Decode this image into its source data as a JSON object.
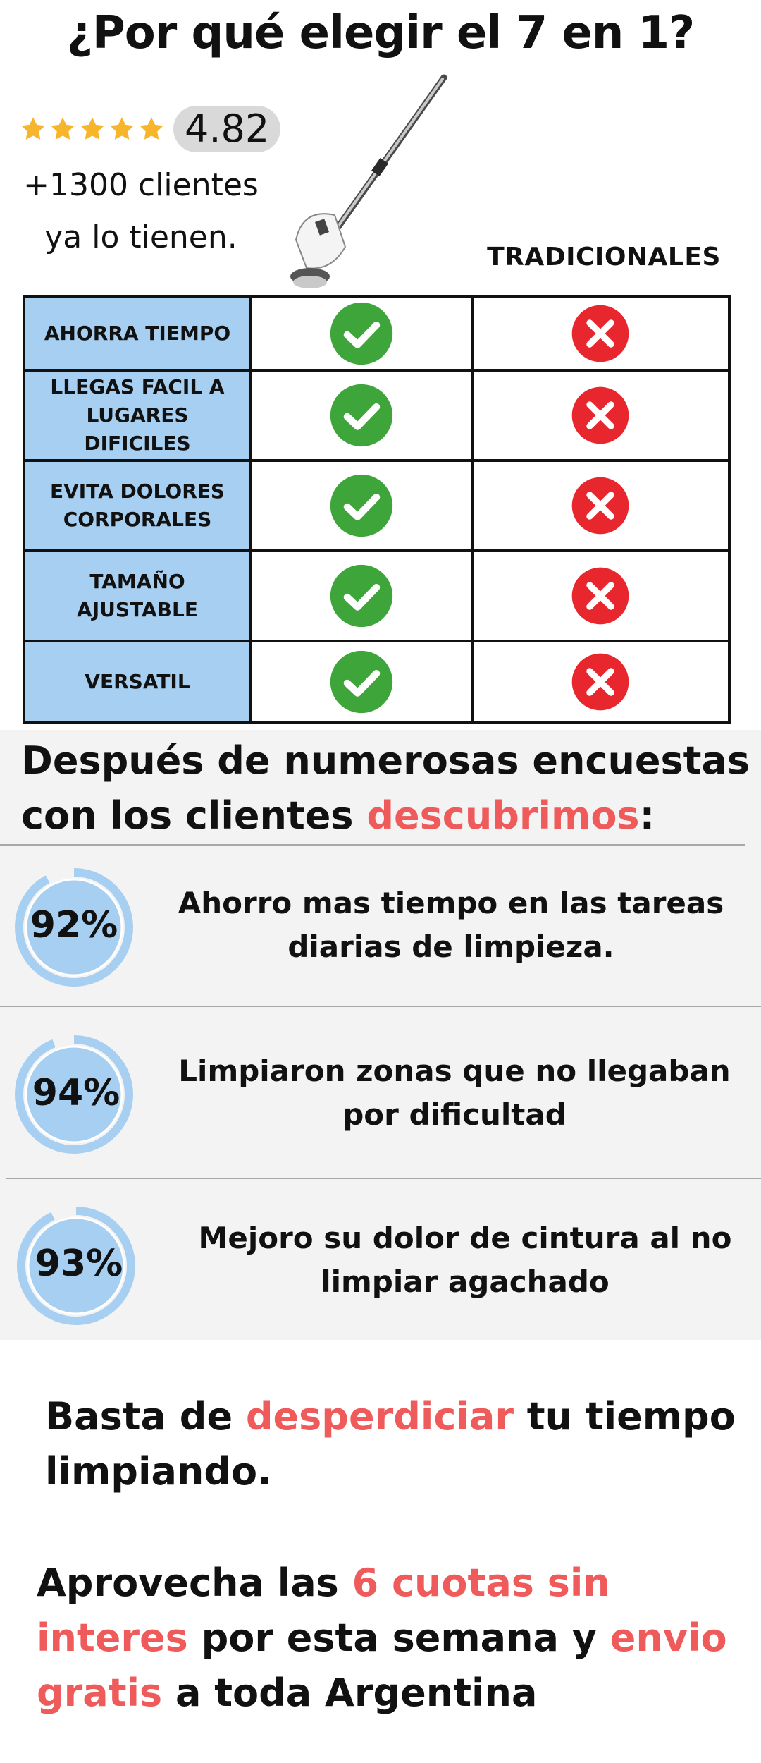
{
  "title": "¿Por qué elegir el 7 en 1?",
  "rating": {
    "stars": 5,
    "score": "4.82",
    "clients_line1": "+1300 clientes",
    "clients_line2": "ya lo tienen."
  },
  "product_image": "electric-spin-scrubber",
  "table": {
    "column_header_traditional": "TRADICIONALES",
    "rows": [
      {
        "label": "AHORRA TIEMPO",
        "product": "check",
        "traditional": "cross"
      },
      {
        "label": "LLEGAS FACIL A LUGARES DIFICILES",
        "product": "check",
        "traditional": "cross"
      },
      {
        "label": "EVITA DOLORES CORPORALES",
        "product": "check",
        "traditional": "cross"
      },
      {
        "label": "TAMAÑO AJUSTABLE",
        "product": "check",
        "traditional": "cross"
      },
      {
        "label": "VERSATIL",
        "product": "check",
        "traditional": "cross"
      }
    ]
  },
  "survey": {
    "heading_part1": "Después de numerosas encuestas con los clientes ",
    "heading_highlight": "descubrimos",
    "heading_part2": ":",
    "stats": [
      {
        "percent": "92%",
        "value": 92,
        "text": "Ahorro mas tiempo en las tareas diarias de limpieza."
      },
      {
        "percent": "94%",
        "value": 94,
        "text": "Limpiaron zonas que no llegaban por dificultad"
      },
      {
        "percent": "93%",
        "value": 93,
        "text": "Mejoro su dolor de cintura al no limpiar agachado"
      }
    ]
  },
  "cta1": {
    "part1": "Basta de ",
    "highlight": "desperdiciar",
    "part2": " tu tiempo limpiando."
  },
  "cta2": {
    "part1": "Aprovecha las ",
    "highlight1": "6 cuotas sin interes",
    "part2": " por esta semana y ",
    "highlight2": "envio gratis",
    "part3": " a toda Argentina"
  },
  "colors": {
    "accent_red": "#ef5b5b",
    "label_blue": "#a7cff1",
    "check_green": "#3ea53b",
    "cross_red": "#e8262e",
    "star_yellow": "#f7b52c",
    "ring_blue": "#a7cff1"
  }
}
